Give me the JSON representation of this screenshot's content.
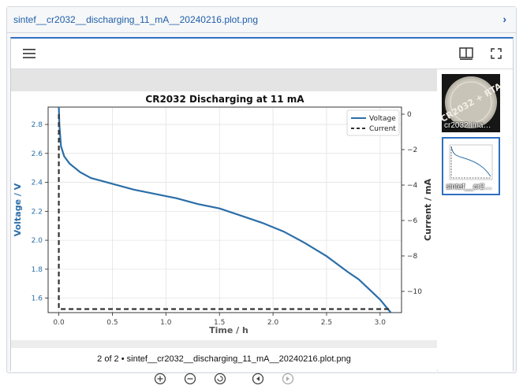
{
  "file_header": {
    "title": "sintef__cr2032__discharging_11_mA__20240216.plot.png"
  },
  "caption": "2 of 2 • sintef__cr2032__discharging_11_mA__20240216.plot.png",
  "thumbnails": [
    {
      "label": "cr2032.ima…",
      "coin_text": "CR2032 + RTA"
    },
    {
      "label": "sintef__cr2…"
    }
  ],
  "icons": {
    "menu": "hamburger-icon",
    "split": "split-view-icon",
    "fullscreen": "fullscreen-icon",
    "zoom_in": "zoom-in-icon",
    "zoom_out": "zoom-out-icon",
    "reset": "rotate-icon",
    "prev": "prev-icon",
    "next": "next-icon"
  },
  "colors": {
    "accent": "#2f6fc0",
    "voltage": "#2b6ea8",
    "current": "#333333",
    "link": "#1f5fa8"
  },
  "chart_data": {
    "type": "line",
    "title": "CR2032 Discharging at 11 mA",
    "xlabel": "Time  /  h",
    "ylabel": "Voltage  /  V",
    "y2label": "Current  /  mA",
    "xlim": [
      -0.1,
      3.2
    ],
    "ylim": [
      1.5,
      2.92
    ],
    "y2lim": [
      -11.2,
      0.4
    ],
    "xticks": [
      0.0,
      0.5,
      1.0,
      1.5,
      2.0,
      2.5,
      3.0
    ],
    "xtick_labels": [
      "0.0",
      "0.5",
      "1.0",
      "1.5",
      "2.0",
      "2.5",
      "3.0"
    ],
    "yticks": [
      1.6,
      1.8,
      2.0,
      2.2,
      2.4,
      2.6,
      2.8
    ],
    "ytick_labels": [
      "1.6",
      "1.8",
      "2.0",
      "2.2",
      "2.4",
      "2.6",
      "2.8"
    ],
    "y2ticks": [
      0,
      -2,
      -4,
      -6,
      -8,
      -10
    ],
    "y2tick_labels": [
      "0",
      "−2",
      "−4",
      "−6",
      "−8",
      "−10"
    ],
    "grid": true,
    "legend_position": "top-right",
    "series": [
      {
        "name": "Voltage",
        "axis": "left",
        "style": "solid",
        "x": [
          0.0,
          0.005,
          0.02,
          0.05,
          0.1,
          0.2,
          0.3,
          0.4,
          0.5,
          0.7,
          0.9,
          1.1,
          1.3,
          1.5,
          1.7,
          1.9,
          2.1,
          2.3,
          2.5,
          2.7,
          2.8,
          2.9,
          3.0,
          3.1
        ],
        "y": [
          2.92,
          2.8,
          2.65,
          2.58,
          2.53,
          2.47,
          2.43,
          2.41,
          2.39,
          2.35,
          2.32,
          2.29,
          2.25,
          2.22,
          2.17,
          2.12,
          2.06,
          1.98,
          1.89,
          1.78,
          1.73,
          1.66,
          1.59,
          1.5
        ]
      },
      {
        "name": "Current",
        "axis": "right",
        "style": "dashed",
        "x": [
          0.0,
          0.0,
          3.1
        ],
        "y": [
          0.0,
          -11.0,
          -11.0
        ]
      }
    ]
  }
}
